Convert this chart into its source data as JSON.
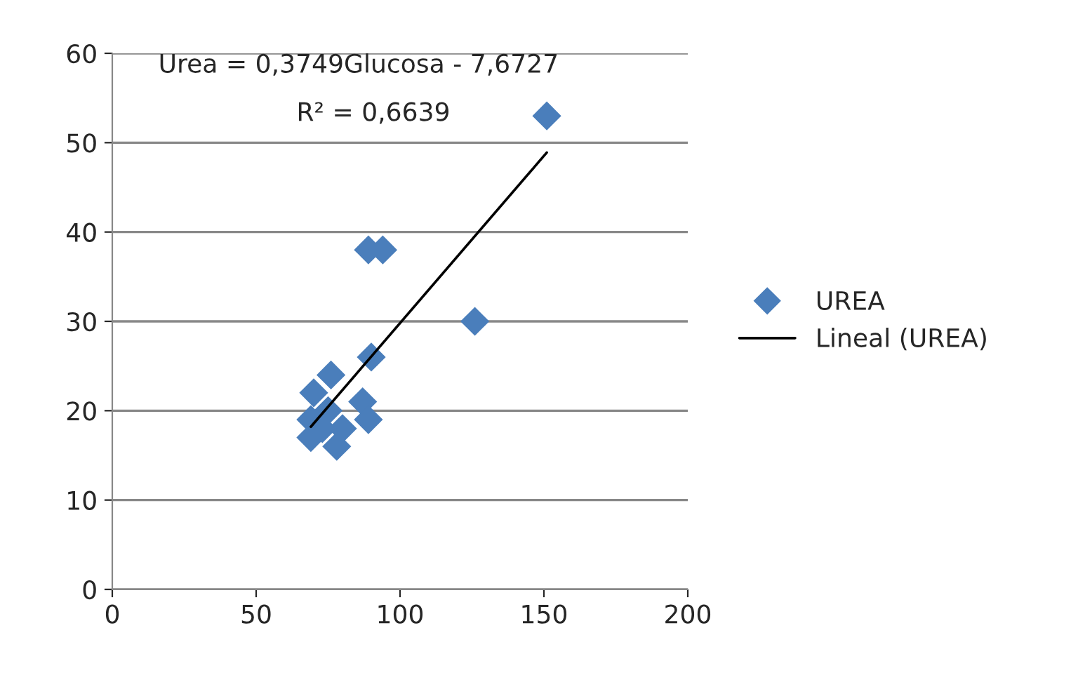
{
  "chart_data": {
    "type": "scatter",
    "xlim": [
      0,
      200
    ],
    "xticks": [
      0,
      50,
      100,
      150,
      200
    ],
    "ylim": [
      0,
      60
    ],
    "yticks": [
      0,
      10,
      20,
      30,
      40,
      50,
      60
    ],
    "grid": "y",
    "legend": "right",
    "annotations": [
      "Urea = 0,3749Glucosa - 7,6727",
      "R² = 0,6639"
    ],
    "series": [
      {
        "name": "UREA",
        "marker": "diamond",
        "color": "#4a7ebb",
        "x": [
          151,
          126,
          89,
          94,
          90,
          76,
          70,
          87,
          89,
          69,
          75,
          80,
          78,
          69,
          73
        ],
        "values": [
          53,
          30,
          38,
          38,
          26,
          24,
          22,
          21,
          19,
          19,
          20,
          18,
          16,
          17,
          18
        ]
      },
      {
        "name": "Lineal (UREA)",
        "type": "line",
        "marker": "none",
        "line_style": "solid",
        "color": "#000000",
        "x": [
          69,
          151
        ],
        "values": [
          18.2,
          48.9
        ]
      }
    ]
  }
}
